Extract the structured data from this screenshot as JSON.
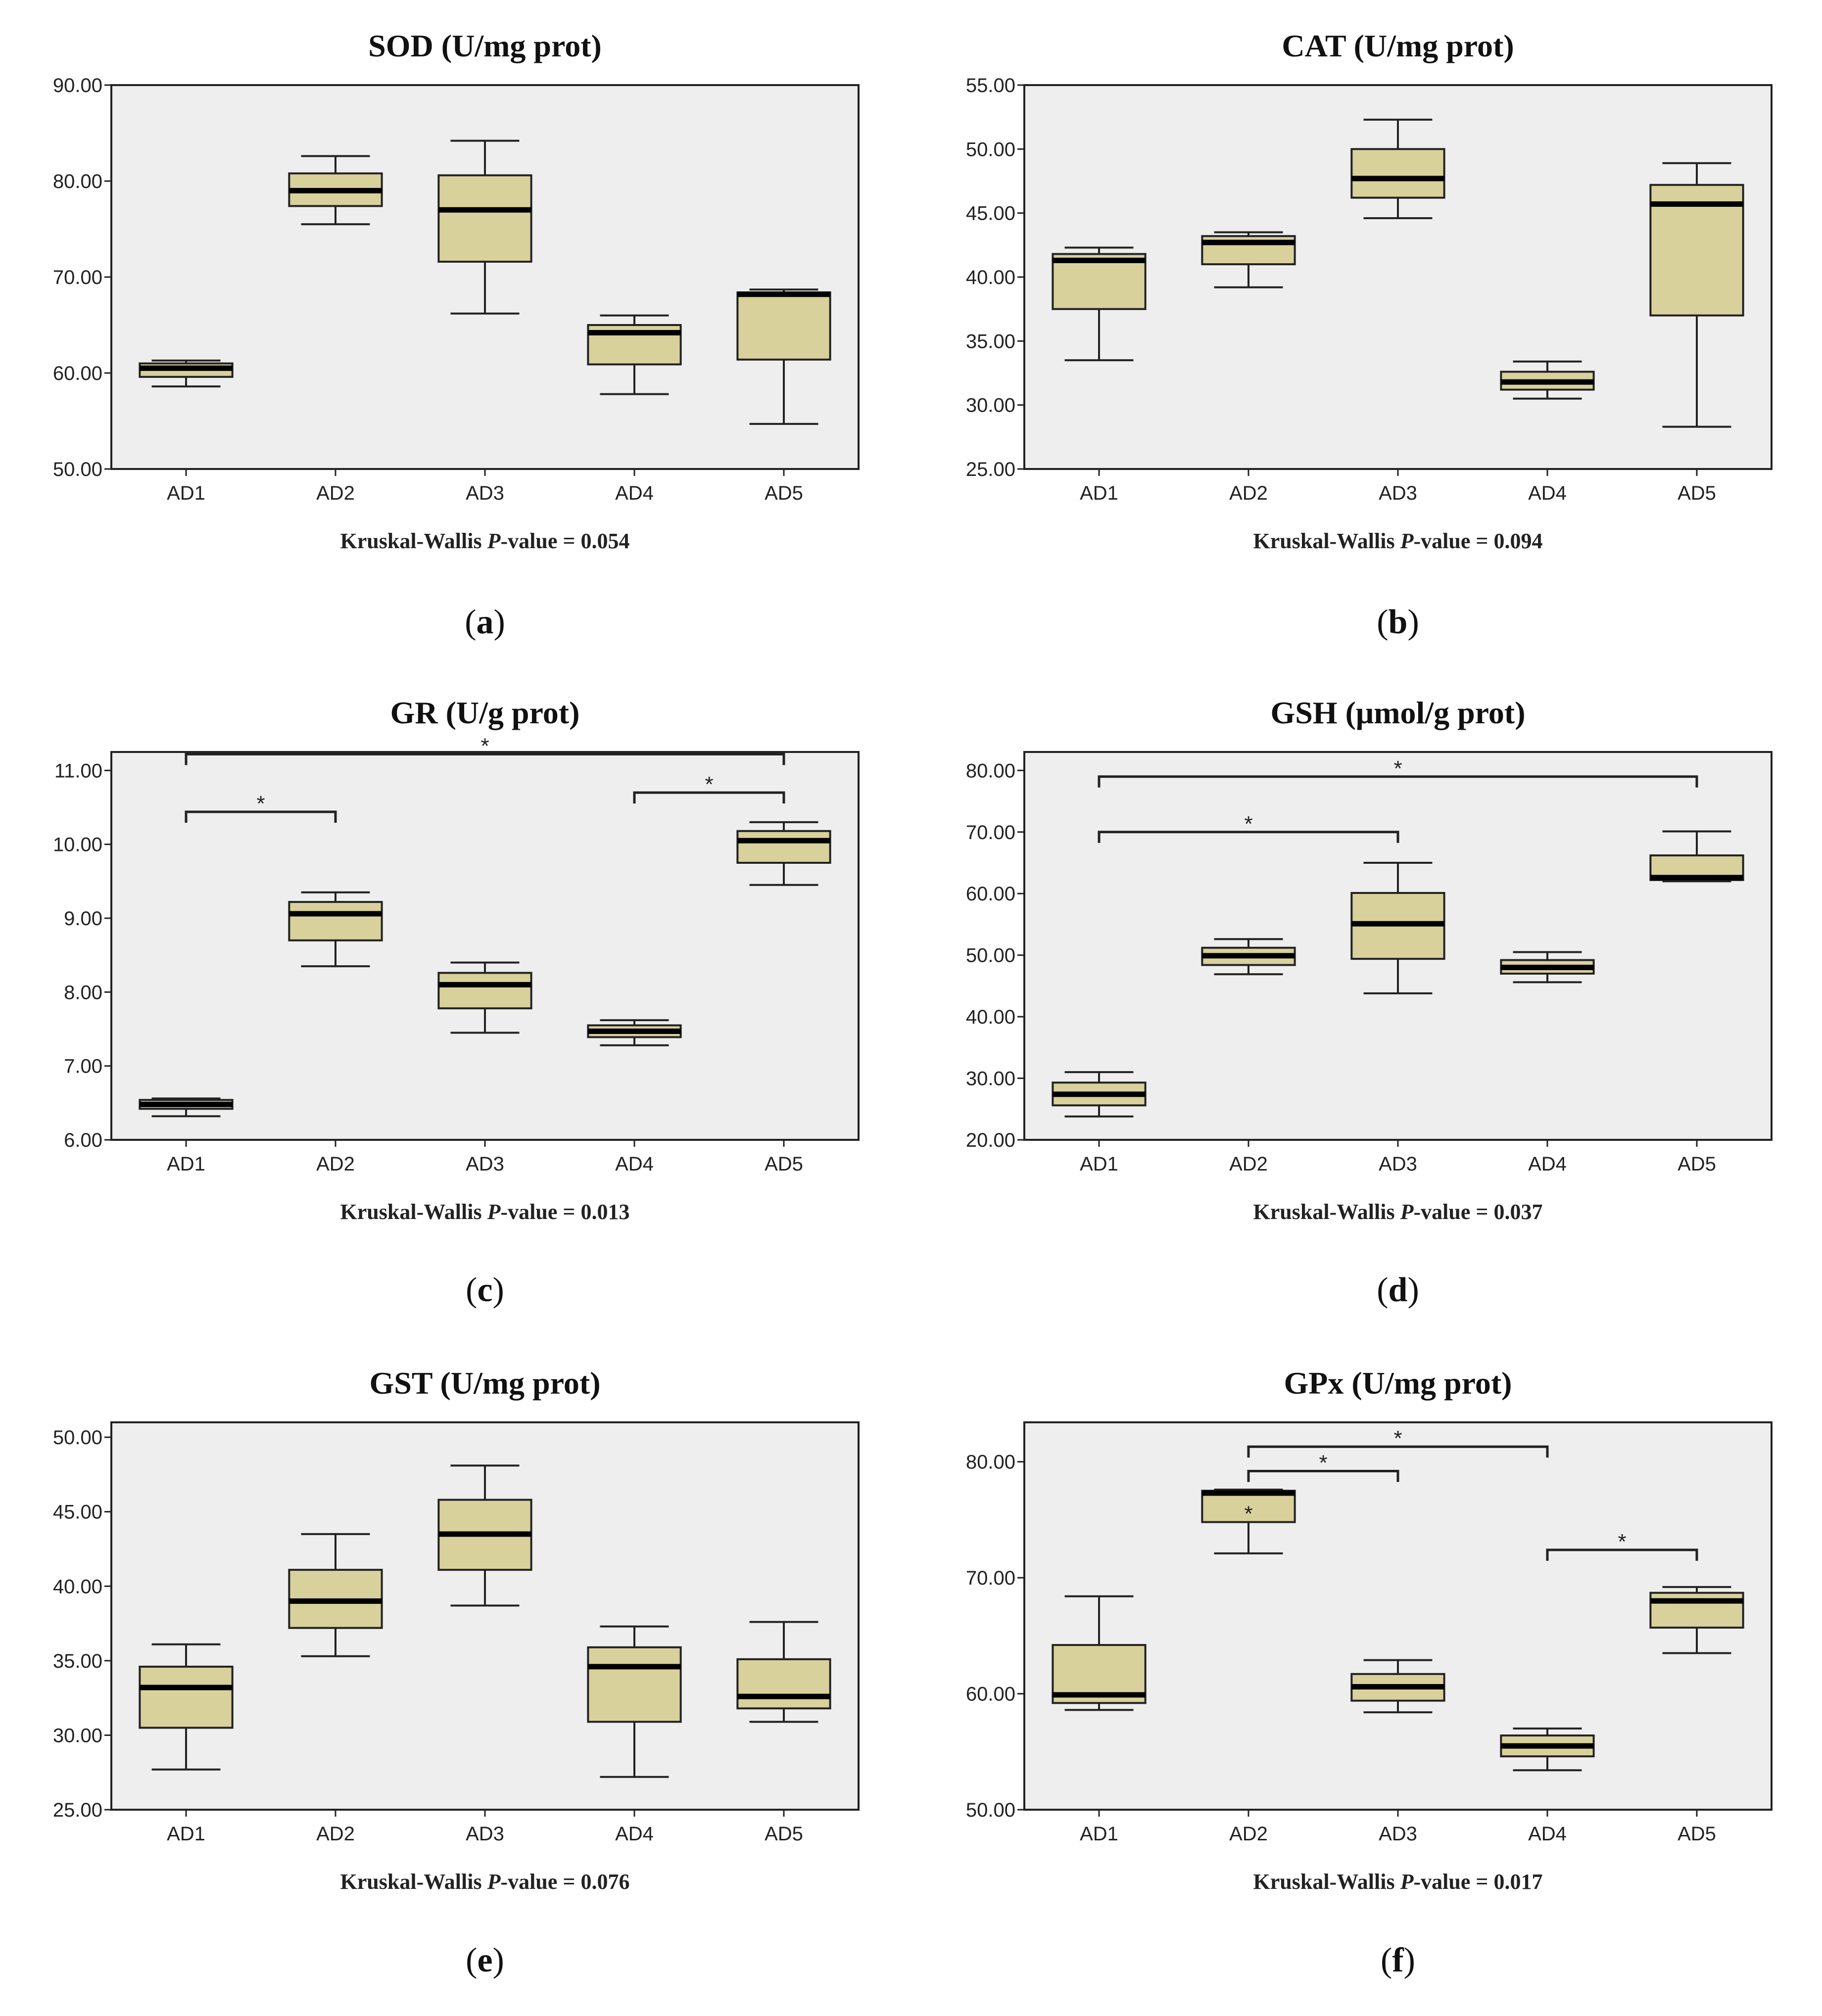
{
  "chart_data": [
    {
      "type": "box",
      "panel_label": "a",
      "title": "SOD (U/mg prot)",
      "categories": [
        "AD1",
        "AD2",
        "AD3",
        "AD4",
        "AD5"
      ],
      "ylim": [
        50,
        90
      ],
      "yticks": [
        50,
        60,
        70,
        80,
        90
      ],
      "yticklabels": [
        "50.00",
        "60.00",
        "70.00",
        "80.00",
        "90.00"
      ],
      "boxes": [
        {
          "min": 58.6,
          "q1": 59.6,
          "median": 60.5,
          "q3": 61.0,
          "max": 61.3
        },
        {
          "min": 75.5,
          "q1": 77.4,
          "median": 79.0,
          "q3": 80.8,
          "max": 82.6
        },
        {
          "min": 66.2,
          "q1": 71.6,
          "median": 77.0,
          "q3": 80.6,
          "max": 84.2
        },
        {
          "min": 57.8,
          "q1": 60.9,
          "median": 64.2,
          "q3": 65.0,
          "max": 66.0
        },
        {
          "min": 54.7,
          "q1": 61.4,
          "median": 68.2,
          "q3": 68.4,
          "max": 68.7
        }
      ],
      "significance": [],
      "outliers": [],
      "pvalue_prefix": "Kruskal-Wallis ",
      "pvalue_italic": "P",
      "pvalue_suffix": "-value = 0.054"
    },
    {
      "type": "box",
      "panel_label": "b",
      "title": "CAT (U/mg prot)",
      "categories": [
        "AD1",
        "AD2",
        "AD3",
        "AD4",
        "AD5"
      ],
      "ylim": [
        25,
        55
      ],
      "yticks": [
        25,
        30,
        35,
        40,
        45,
        50,
        55
      ],
      "yticklabels": [
        "25.00",
        "30.00",
        "35.00",
        "40.00",
        "45.00",
        "50.00",
        "55.00"
      ],
      "boxes": [
        {
          "min": 33.5,
          "q1": 37.5,
          "median": 41.3,
          "q3": 41.8,
          "max": 42.3
        },
        {
          "min": 39.2,
          "q1": 41.0,
          "median": 42.7,
          "q3": 43.2,
          "max": 43.5
        },
        {
          "min": 44.6,
          "q1": 46.2,
          "median": 47.7,
          "q3": 50.0,
          "max": 52.3
        },
        {
          "min": 30.5,
          "q1": 31.2,
          "median": 31.8,
          "q3": 32.6,
          "max": 33.4
        },
        {
          "min": 28.3,
          "q1": 37.0,
          "median": 45.7,
          "q3": 47.2,
          "max": 48.9
        }
      ],
      "significance": [],
      "outliers": [],
      "pvalue_prefix": "Kruskal-Wallis ",
      "pvalue_italic": "P",
      "pvalue_suffix": "-value = 0.094"
    },
    {
      "type": "box",
      "panel_label": "c",
      "title": "GR (U/g prot)",
      "categories": [
        "AD1",
        "AD2",
        "AD3",
        "AD4",
        "AD5"
      ],
      "ylim": [
        6,
        11.25
      ],
      "yticks": [
        6,
        7,
        8,
        9,
        10,
        11
      ],
      "yticklabels": [
        "6.00",
        "7.00",
        "8.00",
        "9.00",
        "10.00",
        "11.00"
      ],
      "boxes": [
        {
          "min": 6.32,
          "q1": 6.42,
          "median": 6.48,
          "q3": 6.54,
          "max": 6.56
        },
        {
          "min": 8.35,
          "q1": 8.7,
          "median": 9.06,
          "q3": 9.22,
          "max": 9.35
        },
        {
          "min": 7.45,
          "q1": 7.78,
          "median": 8.1,
          "q3": 8.26,
          "max": 8.4
        },
        {
          "min": 7.28,
          "q1": 7.39,
          "median": 7.47,
          "q3": 7.55,
          "max": 7.62
        },
        {
          "min": 9.45,
          "q1": 9.75,
          "median": 10.05,
          "q3": 10.18,
          "max": 10.3
        }
      ],
      "significance": [
        {
          "from": 1,
          "to": 5,
          "y": 11.22,
          "label": "*"
        },
        {
          "from": 1,
          "to": 2,
          "y": 10.44,
          "label": "*"
        },
        {
          "from": 4,
          "to": 5,
          "y": 10.7,
          "label": "*"
        }
      ],
      "outliers": [],
      "pvalue_prefix": "Kruskal-Wallis ",
      "pvalue_italic": "P",
      "pvalue_suffix": "-value = 0.013"
    },
    {
      "type": "box",
      "panel_label": "d",
      "title": "GSH (μmol/g prot)",
      "categories": [
        "AD1",
        "AD2",
        "AD3",
        "AD4",
        "AD5"
      ],
      "ylim": [
        20,
        83
      ],
      "yticks": [
        20,
        30,
        40,
        50,
        60,
        70,
        80
      ],
      "yticklabels": [
        "20.00",
        "30.00",
        "40.00",
        "50.00",
        "60.00",
        "70.00",
        "80.00"
      ],
      "boxes": [
        {
          "min": 23.8,
          "q1": 25.6,
          "median": 27.4,
          "q3": 29.3,
          "max": 31.0
        },
        {
          "min": 46.9,
          "q1": 48.4,
          "median": 49.9,
          "q3": 51.2,
          "max": 52.6
        },
        {
          "min": 43.8,
          "q1": 49.4,
          "median": 55.1,
          "q3": 60.1,
          "max": 65.0
        },
        {
          "min": 45.6,
          "q1": 47.0,
          "median": 48.0,
          "q3": 49.2,
          "max": 50.5
        },
        {
          "min": 62.0,
          "q1": 62.2,
          "median": 62.6,
          "q3": 66.2,
          "max": 70.1
        }
      ],
      "significance": [
        {
          "from": 1,
          "to": 5,
          "y": 79.0,
          "label": "*"
        },
        {
          "from": 1,
          "to": 3,
          "y": 70.0,
          "label": "*"
        }
      ],
      "outliers": [],
      "pvalue_prefix": "Kruskal-Wallis ",
      "pvalue_italic": "P",
      "pvalue_suffix": "-value = 0.037"
    },
    {
      "type": "box",
      "panel_label": "e",
      "title": "GST (U/mg prot)",
      "categories": [
        "AD1",
        "AD2",
        "AD3",
        "AD4",
        "AD5"
      ],
      "ylim": [
        25,
        51
      ],
      "yticks": [
        25,
        30,
        35,
        40,
        45,
        50
      ],
      "yticklabels": [
        "25.00",
        "30.00",
        "35.00",
        "40.00",
        "45.00",
        "50.00"
      ],
      "boxes": [
        {
          "min": 27.7,
          "q1": 30.5,
          "median": 33.2,
          "q3": 34.6,
          "max": 36.1
        },
        {
          "min": 35.3,
          "q1": 37.2,
          "median": 39.0,
          "q3": 41.1,
          "max": 43.5
        },
        {
          "min": 38.7,
          "q1": 41.1,
          "median": 43.5,
          "q3": 45.8,
          "max": 48.1
        },
        {
          "min": 27.2,
          "q1": 30.9,
          "median": 34.6,
          "q3": 35.9,
          "max": 37.3
        },
        {
          "min": 30.9,
          "q1": 31.8,
          "median": 32.6,
          "q3": 35.1,
          "max": 37.6
        }
      ],
      "significance": [],
      "outliers": [],
      "pvalue_prefix": "Kruskal-Wallis ",
      "pvalue_italic": "P",
      "pvalue_suffix": "-value = 0.076"
    },
    {
      "type": "box",
      "panel_label": "f",
      "title": "GPx (U/mg prot)",
      "categories": [
        "AD1",
        "AD2",
        "AD3",
        "AD4",
        "AD5"
      ],
      "ylim": [
        50,
        83.4
      ],
      "yticks": [
        50,
        60,
        70,
        80
      ],
      "yticklabels": [
        "50.00",
        "60.00",
        "70.00",
        "80.00"
      ],
      "boxes": [
        {
          "min": 58.6,
          "q1": 59.2,
          "median": 59.9,
          "q3": 64.2,
          "max": 68.4
        },
        {
          "min": 72.1,
          "q1": 74.8,
          "median": 77.3,
          "q3": 77.5,
          "max": 77.6
        },
        {
          "min": 58.4,
          "q1": 59.4,
          "median": 60.6,
          "q3": 61.7,
          "max": 62.9
        },
        {
          "min": 53.4,
          "q1": 54.6,
          "median": 55.5,
          "q3": 56.4,
          "max": 57.0
        },
        {
          "min": 63.5,
          "q1": 65.7,
          "median": 68.0,
          "q3": 68.7,
          "max": 69.2
        }
      ],
      "significance": [
        {
          "from": 2,
          "to": 4,
          "y": 81.3,
          "label": "*"
        },
        {
          "from": 2,
          "to": 3,
          "y": 79.2,
          "label": "*"
        },
        {
          "from": 4,
          "to": 5,
          "y": 72.4,
          "label": "*"
        }
      ],
      "outliers": [
        {
          "category": 2,
          "value": 76.0,
          "label": "*"
        }
      ],
      "pvalue_prefix": "Kruskal-Wallis ",
      "pvalue_italic": "P",
      "pvalue_suffix": "-value = 0.017"
    }
  ],
  "colors": {
    "plot_bg": "#eeeeee",
    "box_fill": "#d9d19c",
    "stroke": "#222222"
  }
}
